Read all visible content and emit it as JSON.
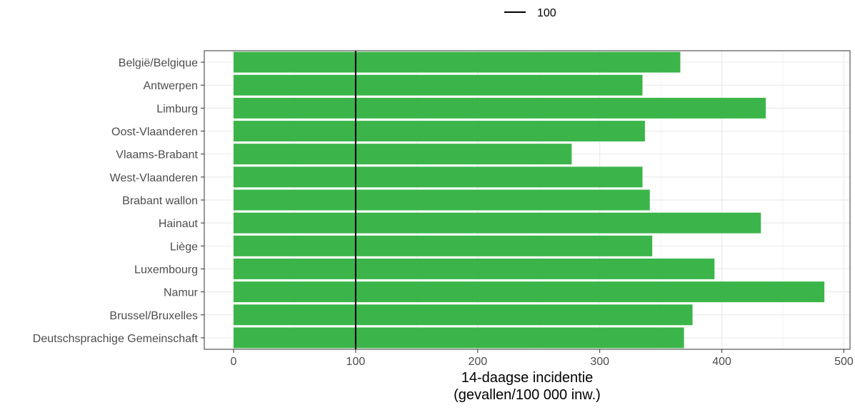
{
  "chart_data": {
    "type": "bar",
    "orientation": "horizontal",
    "categories": [
      "België/Belgique",
      "Antwerpen",
      "Limburg",
      "Oost-Vlaanderen",
      "Vlaams-Brabant",
      "West-Vlaanderen",
      "Brabant wallon",
      "Hainaut",
      "Liège",
      "Luxembourg",
      "Namur",
      "Brussel/Bruxelles",
      "Deutschsprachige Gemeinschaft"
    ],
    "values": [
      366,
      335,
      436,
      337,
      277,
      335,
      341,
      432,
      343,
      394,
      484,
      376,
      369
    ],
    "xlabel_line1": "14-daagse incidentie",
    "xlabel_line2": "(gevallen/100 000 inw.)",
    "ylabel": "",
    "xlim": [
      -24,
      505
    ],
    "xticks": [
      0,
      100,
      200,
      300,
      400,
      500
    ],
    "grid": true,
    "reference_line": {
      "value": 100,
      "legend_label": "100"
    },
    "legend_position": "top",
    "colors": {
      "bar": "#3bb54a",
      "reference": "#000000",
      "grid": "#ebebeb",
      "panel_border": "#333333"
    }
  }
}
